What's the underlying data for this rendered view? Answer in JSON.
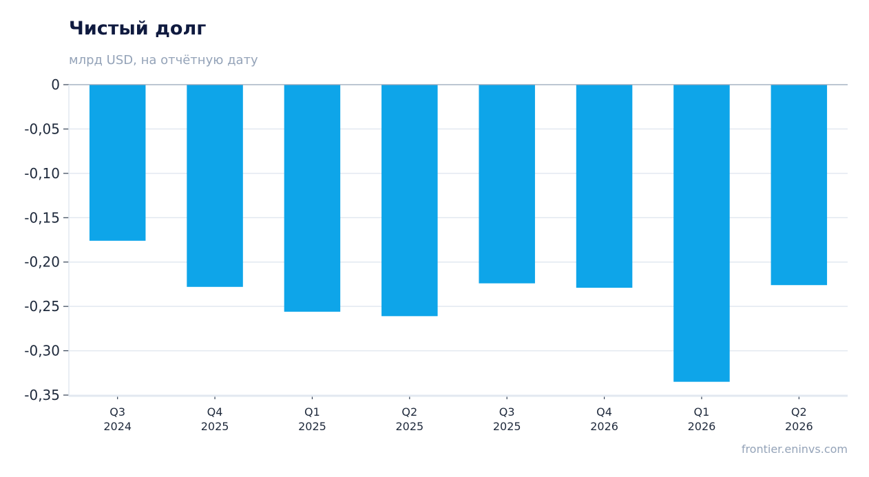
{
  "chart_data": {
    "type": "bar",
    "title": "Чистый долг",
    "subtitle": "млрд USD, на отчётную дату",
    "categories": [
      [
        "Q3",
        "2024"
      ],
      [
        "Q4",
        "2025"
      ],
      [
        "Q1",
        "2025"
      ],
      [
        "Q2",
        "2025"
      ],
      [
        "Q3",
        "2025"
      ],
      [
        "Q4",
        "2026"
      ],
      [
        "Q1",
        "2026"
      ],
      [
        "Q2",
        "2026"
      ]
    ],
    "values": [
      -0.176,
      -0.228,
      -0.256,
      -0.261,
      -0.224,
      -0.229,
      -0.335,
      -0.226
    ],
    "ylim": [
      -0.35,
      0
    ],
    "yticks": [
      0,
      -0.05,
      -0.1,
      -0.15,
      -0.2,
      -0.25,
      -0.3,
      -0.35
    ],
    "ytick_labels": [
      "0",
      "-0,05",
      "-0,10",
      "-0,15",
      "-0,20",
      "-0,25",
      "-0,30",
      "-0,35"
    ],
    "grid": true,
    "bar_color": "#0ea5e9",
    "xlabel": "",
    "ylabel": ""
  },
  "source": "frontier.eninvs.com"
}
